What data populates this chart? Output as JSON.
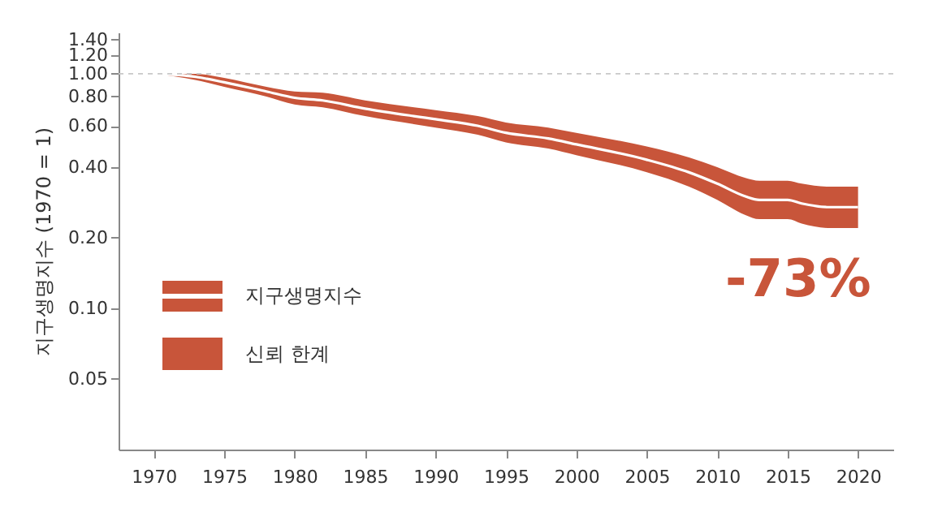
{
  "chart_data": {
    "type": "line",
    "ylabel": "지구생명지수 (1970 = 1)",
    "x": [
      1970,
      1973,
      1975,
      1978,
      1980,
      1982,
      1985,
      1990,
      1993,
      1995,
      1998,
      2000,
      2005,
      2008,
      2010,
      2012,
      2013,
      2015,
      2016,
      2018,
      2020
    ],
    "series": [
      {
        "name": "지구생명지수",
        "color": "#ffffff",
        "values": [
          1.0,
          0.97,
          0.92,
          0.84,
          0.79,
          0.77,
          0.71,
          0.64,
          0.6,
          0.56,
          0.53,
          0.5,
          0.43,
          0.38,
          0.34,
          0.3,
          0.29,
          0.29,
          0.28,
          0.27,
          0.27
        ],
        "lower": [
          1.0,
          0.94,
          0.88,
          0.8,
          0.74,
          0.72,
          0.66,
          0.59,
          0.55,
          0.51,
          0.48,
          0.45,
          0.38,
          0.33,
          0.29,
          0.25,
          0.24,
          0.24,
          0.23,
          0.22,
          0.22
        ],
        "upper": [
          1.0,
          1.0,
          0.96,
          0.88,
          0.84,
          0.83,
          0.77,
          0.7,
          0.66,
          0.62,
          0.59,
          0.56,
          0.49,
          0.44,
          0.4,
          0.36,
          0.35,
          0.35,
          0.34,
          0.33,
          0.33
        ]
      }
    ],
    "log": "y",
    "xlim": [
      1967.5,
      2022.5
    ],
    "xticks": [
      1970,
      1975,
      1980,
      1985,
      1990,
      1995,
      2000,
      2005,
      2010,
      2015,
      2020
    ],
    "ylim": [
      0.025,
      1.5
    ],
    "yticks": [
      0.05,
      {
        "value": 0.1,
        "label": "0.10"
      },
      {
        "value": 0.2,
        "label": "0.20"
      },
      {
        "value": 0.4,
        "label": "0.40"
      },
      {
        "value": 0.6,
        "label": "0.60"
      },
      {
        "value": 0.8,
        "label": "0.80"
      },
      {
        "value": 1,
        "label": "1.00"
      },
      {
        "value": 1.2,
        "label": "1.20"
      },
      {
        "value": 1.4,
        "label": "1.40"
      }
    ],
    "ref_lines": [
      {
        "axis": "y",
        "value": 1,
        "color": "#c8c8c8",
        "line_style": "dashed"
      }
    ],
    "annotations": [
      {
        "text": "-73%",
        "x": 2020,
        "y": 0.27
      },
      "신뢰 한계"
    ],
    "legend": "bottom left",
    "grid": false
  }
}
